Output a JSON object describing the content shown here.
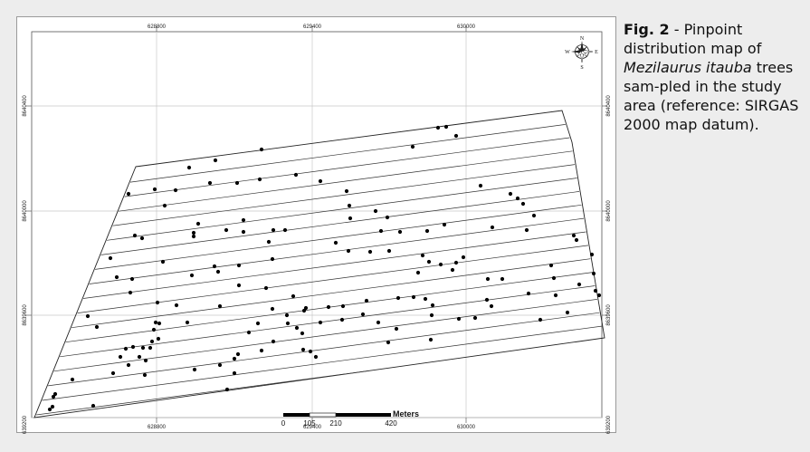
{
  "caption": {
    "label": "Fig. 2",
    "text_before": " - Pinpoint distribution map of ",
    "species": "Mezilaurus itauba",
    "text_after": " trees sam-pled in the study area (reference: SIRGAS 2000 map datum)."
  },
  "map": {
    "x_ticks": [
      "628800",
      "629400",
      "630000"
    ],
    "y_ticks": [
      "8640400",
      "8640000",
      "8639600",
      "8639200"
    ],
    "scale_bar": {
      "title": "Meters",
      "labels": [
        "0",
        "105",
        "210",
        "420"
      ]
    },
    "compass": {
      "n": "N",
      "e": "E",
      "s": "S",
      "w": "W"
    },
    "colors": {
      "background": "#ededed",
      "map_frame": "#ffffff",
      "transect_lines": "#333333",
      "grid": "#c8c8c8",
      "points": "#000000"
    }
  }
}
